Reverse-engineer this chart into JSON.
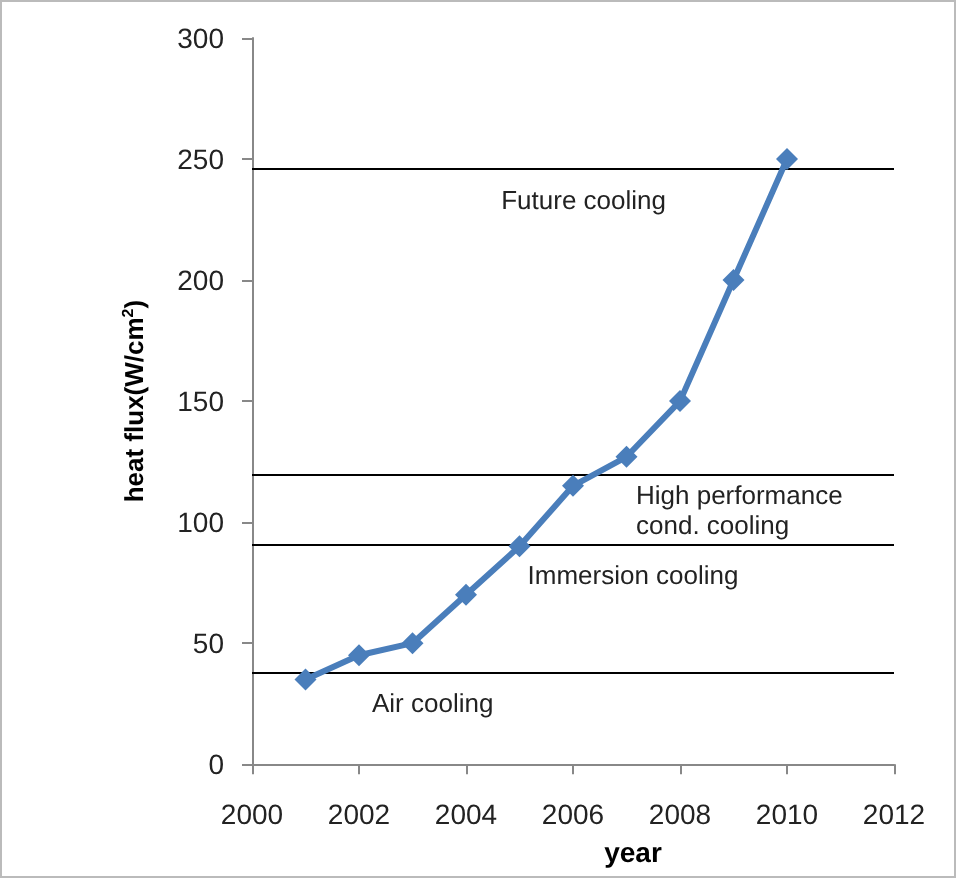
{
  "chart_data": {
    "type": "line",
    "xlabel": "year",
    "ylabel": "heat flux(W/cm$^{2}$)",
    "x": [
      2001,
      2002,
      2003,
      2004,
      2005,
      2006,
      2007,
      2008,
      2009,
      2010
    ],
    "series": [
      {
        "color": "#4a7ebb",
        "values": [
          35,
          45,
          50,
          70,
          90,
          115,
          127,
          150,
          200,
          250
        ]
      }
    ],
    "xlim": [
      2000,
      2012
    ],
    "xticks": [
      2000,
      2002,
      2004,
      2006,
      2008,
      2010,
      2012
    ],
    "ylim": [
      0,
      300
    ],
    "yticks": [
      0,
      50,
      100,
      150,
      200,
      250,
      300
    ],
    "marker": "diamond",
    "grid": false,
    "ref_lines": [
      {
        "axis": "y",
        "value": 246,
        "color": "#000000",
        "label": "Future cooling"
      },
      {
        "axis": "y",
        "value": 120,
        "color": "#000000",
        "label": "High performance cond. cooling"
      },
      {
        "axis": "y",
        "value": 91,
        "color": "#000000",
        "label": "Immersion cooling"
      },
      {
        "axis": "y",
        "value": 38,
        "color": "#000000",
        "label": "Air cooling"
      }
    ]
  }
}
